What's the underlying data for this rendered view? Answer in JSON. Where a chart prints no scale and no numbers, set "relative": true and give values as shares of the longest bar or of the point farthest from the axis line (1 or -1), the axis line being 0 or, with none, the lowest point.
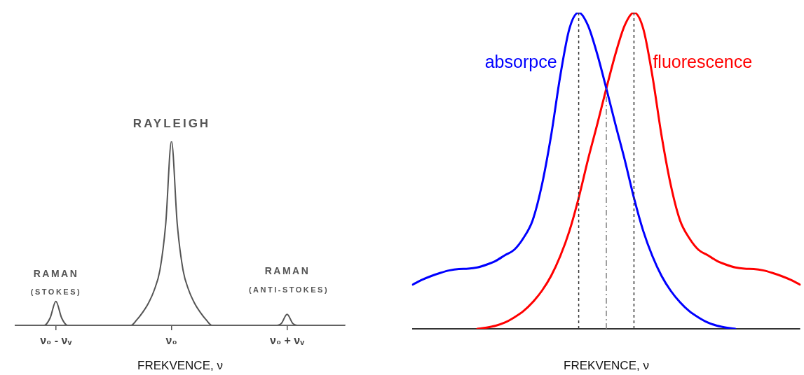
{
  "chart_data": [
    {
      "type": "line",
      "relative": true,
      "xlabel": "FREKVENCE, ν",
      "color": "#555555",
      "categories": [
        null,
        null,
        null,
        null,
        null,
        null,
        null,
        "ν₀ - νᵥ",
        null,
        null,
        null,
        null,
        null,
        null,
        null,
        null,
        null,
        null,
        null,
        null,
        null,
        null,
        null,
        null,
        null,
        null,
        null,
        "ν₀",
        null,
        null,
        null,
        null,
        null,
        null,
        null,
        null,
        null,
        null,
        null,
        null,
        null,
        null,
        null,
        null,
        null,
        null,
        null,
        "ν₀ + νᵥ",
        null,
        null,
        null,
        null,
        null,
        null,
        null,
        null,
        null,
        null
      ],
      "values": [
        0,
        0,
        0,
        0,
        0,
        0,
        0.04,
        0.13,
        0.04,
        0,
        0,
        0,
        0,
        0,
        0,
        0,
        0,
        0,
        0,
        0,
        0,
        0.03,
        0.07,
        0.12,
        0.19,
        0.3,
        0.55,
        1,
        0.55,
        0.3,
        0.19,
        0.12,
        0.07,
        0.03,
        0,
        0,
        0,
        0,
        0,
        0,
        0,
        0,
        0,
        0,
        0,
        0,
        0.01,
        0.06,
        0.01,
        0,
        0,
        0,
        0,
        0,
        0,
        0,
        0,
        0
      ],
      "annotations": [
        "RAYLEIGH",
        "RAMAN",
        "(STOKES)",
        "RAMAN",
        "(ANTI-STOKES)"
      ]
    },
    {
      "type": "line",
      "relative": true,
      "xlabel": "FREKVENCE, ν",
      "categories": [
        null,
        null,
        null,
        null,
        null,
        null,
        null,
        null,
        null,
        null,
        null,
        null,
        null,
        null,
        null,
        null,
        null,
        null,
        null,
        null,
        null,
        null,
        null,
        null,
        null,
        null,
        null,
        null,
        null,
        null,
        null,
        null,
        null,
        null,
        null,
        null,
        null,
        null,
        null,
        null,
        null,
        null,
        null
      ],
      "series": [
        {
          "name": "absorpce",
          "color": "#0000ff",
          "values": [
            0.14,
            0.155,
            0.167,
            0.177,
            0.185,
            0.189,
            0.19,
            0.194,
            0.203,
            0.215,
            0.233,
            0.25,
            0.287,
            0.343,
            0.454,
            0.61,
            0.8,
            0.95,
            1,
            0.96,
            0.87,
            0.76,
            0.645,
            0.534,
            0.414,
            0.31,
            0.23,
            0.167,
            0.12,
            0.084,
            0.056,
            0.036,
            0.02,
            0.01,
            0.004,
            0,
            null,
            null,
            null,
            null,
            null,
            null,
            null
          ]
        },
        {
          "name": "fluorescence",
          "color": "#ff0000",
          "values": [
            null,
            null,
            null,
            null,
            null,
            null,
            null,
            0,
            0.004,
            0.01,
            0.02,
            0.036,
            0.056,
            0.084,
            0.12,
            0.167,
            0.23,
            0.31,
            0.414,
            0.534,
            0.645,
            0.76,
            0.87,
            0.96,
            1,
            0.95,
            0.8,
            0.61,
            0.454,
            0.343,
            0.287,
            0.25,
            0.233,
            0.215,
            0.203,
            0.194,
            0.19,
            0.189,
            0.185,
            0.177,
            0.167,
            0.155,
            0.14
          ]
        }
      ]
    }
  ]
}
